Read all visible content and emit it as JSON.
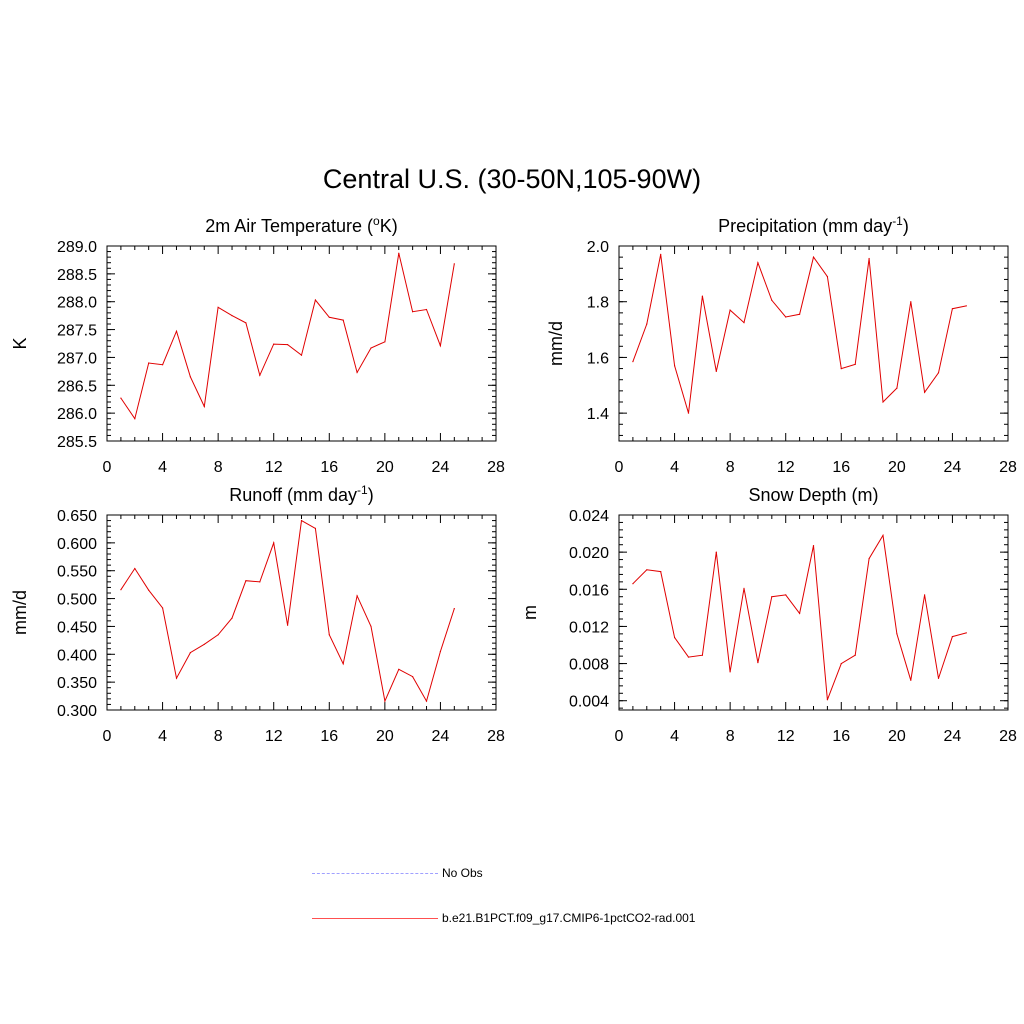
{
  "title": "Central U.S. (30-50N,105-90W)",
  "legend": [
    {
      "label": "No Obs",
      "color": "#a0a0ff",
      "style": "dashed"
    },
    {
      "label": "b.e21.B1PCT.f09_g17.CMIP6-1pctCO2-rad.001",
      "color": "#ff5050",
      "style": "solid"
    }
  ],
  "chart_data": [
    {
      "type": "line",
      "title": "2m Air Temperature (",
      "title_sup": "o",
      "title_end": "K)",
      "ylabel": "K",
      "xlim": [
        0,
        28
      ],
      "ylim": [
        285.5,
        289.0
      ],
      "xticks": [
        0,
        4,
        8,
        12,
        16,
        20,
        24,
        28
      ],
      "yticks": [
        "285.5",
        "286.0",
        "286.5",
        "287.0",
        "287.5",
        "288.0",
        "288.5",
        "289.0"
      ],
      "series": [
        {
          "color": "#e00000",
          "x": [
            1,
            2,
            3,
            4,
            5,
            6,
            7,
            8,
            9,
            10,
            11,
            12,
            13,
            14,
            15,
            16,
            17,
            18,
            19,
            20,
            21,
            22,
            23,
            24,
            25
          ],
          "y": [
            286.27,
            285.9,
            286.9,
            286.87,
            287.47,
            286.65,
            286.12,
            287.9,
            287.75,
            287.62,
            286.68,
            287.24,
            287.23,
            287.04,
            288.03,
            287.72,
            287.67,
            286.73,
            287.17,
            287.28,
            288.87,
            287.82,
            287.86,
            287.21,
            288.68
          ]
        }
      ]
    },
    {
      "type": "line",
      "title": "Precipitation (mm day",
      "title_sup": "-1",
      "title_end": ")",
      "ylabel": "mm/d",
      "xlim": [
        0,
        28
      ],
      "ylim": [
        1.3,
        2.0
      ],
      "xticks": [
        0,
        4,
        8,
        12,
        16,
        20,
        24,
        28
      ],
      "yticks": [
        "1.4",
        "1.6",
        "1.8",
        "2.0"
      ],
      "series": [
        {
          "color": "#e00000",
          "x": [
            1,
            2,
            3,
            4,
            5,
            6,
            7,
            8,
            9,
            10,
            11,
            12,
            13,
            14,
            15,
            16,
            17,
            18,
            19,
            20,
            21,
            22,
            23,
            24,
            25
          ],
          "y": [
            1.585,
            1.72,
            1.97,
            1.57,
            1.4,
            1.82,
            1.55,
            1.77,
            1.725,
            1.94,
            1.805,
            1.745,
            1.755,
            1.96,
            1.89,
            1.56,
            1.575,
            1.955,
            1.44,
            1.49,
            1.8,
            1.475,
            1.545,
            1.775,
            1.785
          ]
        }
      ]
    },
    {
      "type": "line",
      "title": "Runoff (mm day",
      "title_sup": "-1",
      "title_end": ")",
      "ylabel": "mm/d",
      "xlim": [
        0,
        28
      ],
      "ylim": [
        0.3,
        0.65
      ],
      "xticks": [
        0,
        4,
        8,
        12,
        16,
        20,
        24,
        28
      ],
      "yticks": [
        "0.300",
        "0.350",
        "0.400",
        "0.450",
        "0.500",
        "0.550",
        "0.600",
        "0.650"
      ],
      "series": [
        {
          "color": "#e00000",
          "x": [
            1,
            2,
            3,
            4,
            5,
            6,
            7,
            8,
            9,
            10,
            11,
            12,
            13,
            14,
            15,
            16,
            17,
            18,
            19,
            20,
            21,
            22,
            23,
            24,
            25
          ],
          "y": [
            0.516,
            0.554,
            0.515,
            0.483,
            0.357,
            0.403,
            0.418,
            0.435,
            0.465,
            0.532,
            0.53,
            0.6,
            0.452,
            0.64,
            0.626,
            0.435,
            0.383,
            0.505,
            0.45,
            0.316,
            0.373,
            0.36,
            0.316,
            0.405,
            0.482
          ]
        }
      ]
    },
    {
      "type": "line",
      "title": "Snow Depth (m)",
      "title_sup": "",
      "title_end": "",
      "ylabel": "m",
      "xlim": [
        0,
        28
      ],
      "ylim": [
        0.003,
        0.024
      ],
      "xticks": [
        0,
        4,
        8,
        12,
        16,
        20,
        24,
        28
      ],
      "yticks": [
        "0.004",
        "0.008",
        "0.012",
        "0.016",
        "0.020",
        "0.024"
      ],
      "series": [
        {
          "color": "#e00000",
          "x": [
            1,
            2,
            3,
            4,
            5,
            6,
            7,
            8,
            9,
            10,
            11,
            12,
            13,
            14,
            15,
            16,
            17,
            18,
            19,
            20,
            21,
            22,
            23,
            24,
            25
          ],
          "y": [
            0.0166,
            0.0181,
            0.0179,
            0.0108,
            0.0087,
            0.0089,
            0.02,
            0.0071,
            0.0161,
            0.0081,
            0.0152,
            0.0154,
            0.0134,
            0.0207,
            0.0041,
            0.008,
            0.0089,
            0.0193,
            0.0218,
            0.0112,
            0.0062,
            0.0154,
            0.0064,
            0.0109,
            0.0113
          ]
        }
      ]
    }
  ]
}
